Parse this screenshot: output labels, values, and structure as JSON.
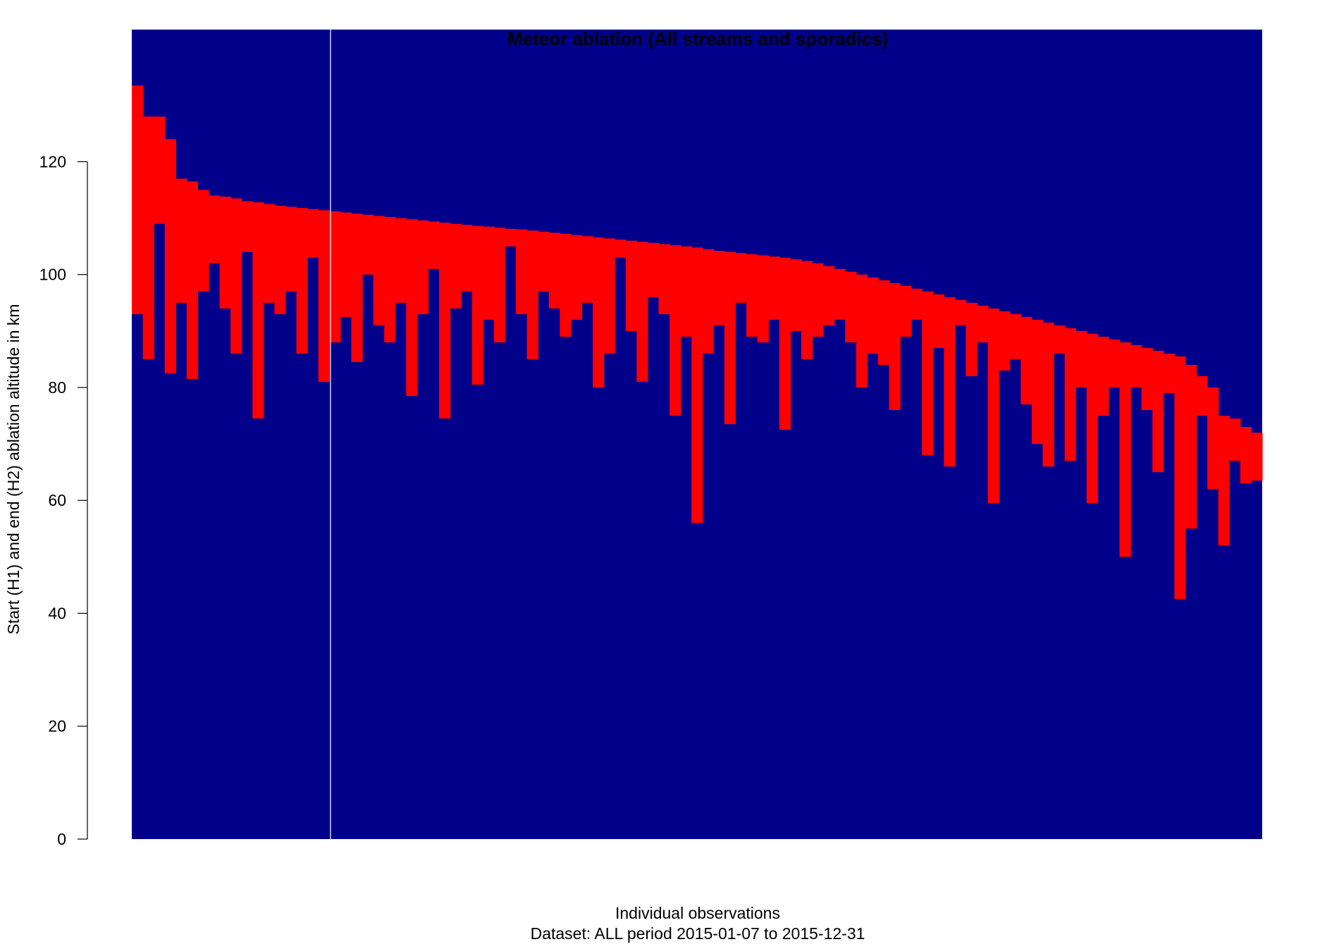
{
  "chart_data": {
    "type": "range_bar",
    "title": "Meteor ablation (All streams and sporadics)",
    "x_label": "Individual observations",
    "subtitle": "Dataset: ALL period 2015-01-07 to 2015-12-31",
    "y_label": "Start (H1) and end (H2) ablation altitude in km",
    "color": "#ff0000",
    "background": "#00008b",
    "ylim": [
      0,
      143.4
    ],
    "yticks": [
      0,
      20,
      40,
      60,
      80,
      100,
      120
    ],
    "start": [
      133.5,
      128,
      128,
      124,
      117,
      116.5,
      115,
      114,
      113.8,
      113.5,
      113,
      112.8,
      112.5,
      112.2,
      112,
      111.8,
      111.6,
      111.4,
      111.2,
      111,
      110.8,
      110.6,
      110.4,
      110.2,
      110,
      109.8,
      109.6,
      109.4,
      109.2,
      109,
      108.8,
      108.6,
      108.5,
      108.3,
      108.1,
      108,
      107.8,
      107.6,
      107.4,
      107.2,
      107,
      106.8,
      106.6,
      106.4,
      106.2,
      106,
      105.8,
      105.6,
      105.4,
      105.2,
      105,
      104.8,
      104.5,
      104.2,
      104,
      103.8,
      103.6,
      103.4,
      103.2,
      103,
      102.7,
      102.4,
      102,
      101.5,
      101,
      100.5,
      100,
      99.5,
      99,
      98.5,
      98,
      97.5,
      97,
      96.5,
      96,
      95.5,
      95,
      94.5,
      94,
      93.5,
      93,
      92.5,
      92,
      91.5,
      91,
      90.5,
      90,
      89.5,
      89,
      88.5,
      88,
      87.5,
      87,
      86.5,
      86,
      85.5,
      84,
      82,
      80,
      75,
      74.5,
      73,
      72
    ],
    "end": [
      93,
      85,
      109,
      82.5,
      95,
      81.5,
      97,
      102,
      94,
      86,
      104,
      74.5,
      95,
      93,
      97,
      86,
      103,
      81,
      88,
      92.5,
      84.5,
      100,
      91,
      88,
      95,
      78.5,
      93,
      101,
      74.5,
      94,
      97,
      80.5,
      92,
      88,
      105,
      93,
      85,
      97,
      94,
      89,
      92,
      95,
      80,
      86,
      103,
      90,
      81,
      96,
      93,
      75,
      89,
      56,
      86,
      91,
      73.5,
      95,
      89,
      88,
      92,
      72.5,
      90,
      85,
      89,
      91,
      92,
      88,
      80,
      86,
      84,
      76,
      89,
      92,
      68,
      87,
      66,
      91,
      82,
      88,
      59.5,
      83,
      85,
      77,
      70,
      66,
      86,
      67,
      80,
      59.5,
      75,
      80,
      50,
      80,
      76,
      65,
      79,
      42.5,
      55,
      75,
      62,
      52,
      67,
      63,
      63.5
    ]
  }
}
